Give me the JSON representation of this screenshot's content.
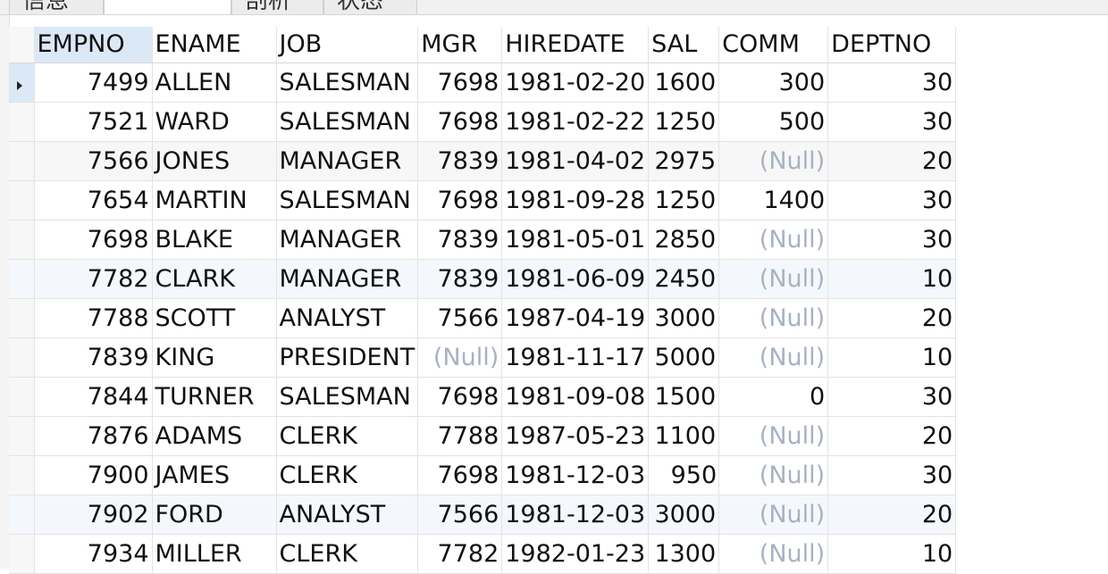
{
  "tabs": [
    {
      "label": "信息",
      "active": false
    },
    {
      "label": "",
      "active": true
    },
    {
      "label": "剖析",
      "active": false
    },
    {
      "label": "状态",
      "active": false
    }
  ],
  "grid": {
    "columns": [
      "EMPNO",
      "ENAME",
      "JOB",
      "MGR",
      "HIREDATE",
      "SAL",
      "COMM",
      "DEPTNO"
    ],
    "rows": [
      [
        "7499",
        "ALLEN",
        "SALESMAN",
        "7698",
        "1981-02-20",
        "1600",
        "300",
        "30"
      ],
      [
        "7521",
        "WARD",
        "SALESMAN",
        "7698",
        "1981-02-22",
        "1250",
        "500",
        "30"
      ],
      [
        "7566",
        "JONES",
        "MANAGER",
        "7839",
        "1981-04-02",
        "2975",
        "(Null)",
        "20"
      ],
      [
        "7654",
        "MARTIN",
        "SALESMAN",
        "7698",
        "1981-09-28",
        "1250",
        "1400",
        "30"
      ],
      [
        "7698",
        "BLAKE",
        "MANAGER",
        "7839",
        "1981-05-01",
        "2850",
        "(Null)",
        "30"
      ],
      [
        "7782",
        "CLARK",
        "MANAGER",
        "7839",
        "1981-06-09",
        "2450",
        "(Null)",
        "10"
      ],
      [
        "7788",
        " SCOTT",
        "ANALYST",
        "7566",
        "1987-04-19",
        "3000",
        "(Null)",
        "20"
      ],
      [
        "7839",
        "KING",
        "PRESIDENT",
        "(Null)",
        "1981-11-17",
        "5000",
        "(Null)",
        "10"
      ],
      [
        "7844",
        "TURNER",
        "SALESMAN",
        "7698",
        "1981-09-08",
        "1500",
        "0",
        "30"
      ],
      [
        "7876",
        "ADAMS",
        "CLERK",
        "7788",
        "1987-05-23",
        "1100",
        "(Null)",
        "20"
      ],
      [
        "7900",
        "JAMES",
        "CLERK",
        "7698",
        "1981-12-03",
        "950",
        "(Null)",
        "30"
      ],
      [
        "7902",
        "FORD",
        "ANALYST",
        "7566",
        "1981-12-03",
        "3000",
        "(Null)",
        "20"
      ],
      [
        "7934",
        "MILLER",
        "CLERK",
        "7782",
        "1982-01-23",
        "1300",
        "(Null)",
        "10"
      ]
    ]
  },
  "colors": {
    "selection": "#dbe9f6",
    "null_text": "#a7b2c2"
  }
}
